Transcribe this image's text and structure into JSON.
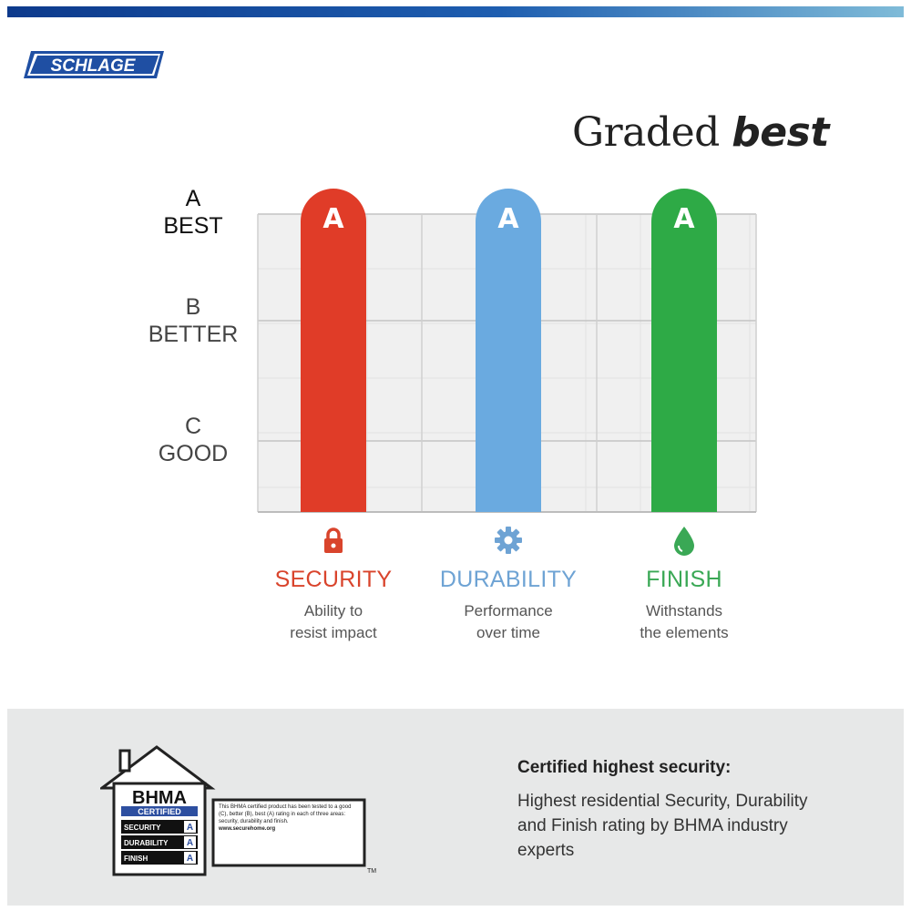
{
  "brand": {
    "logo_text": "SCHLAGE"
  },
  "headline": {
    "prefix": "Graded",
    "emphasis": "best"
  },
  "chart_data": {
    "type": "bar",
    "title": "Graded best",
    "categories": [
      "SECURITY",
      "DURABILITY",
      "FINISH"
    ],
    "values": [
      "A",
      "A",
      "A"
    ],
    "scale": [
      {
        "grade": "A",
        "label": "BEST"
      },
      {
        "grade": "B",
        "label": "BETTER"
      },
      {
        "grade": "C",
        "label": "GOOD"
      }
    ],
    "bar_colors": [
      "#e03c28",
      "#6aaae0",
      "#2eaa46"
    ],
    "category_colors": [
      "#d9442c",
      "#6ea3d4",
      "#3aa855"
    ],
    "descriptions": [
      [
        "Ability to",
        "resist impact"
      ],
      [
        "Performance",
        "over time"
      ],
      [
        "Withstands",
        "the elements"
      ]
    ],
    "icons": [
      "lock-icon",
      "gear-icon",
      "droplet-icon"
    ],
    "grid": true
  },
  "certification": {
    "title": "Certified highest security:",
    "text": "Highest residential Security, Durability and Finish rating by BHMA industry experts"
  },
  "bhma_badge": {
    "name": "BHMA",
    "certified": "CERTIFIED",
    "rows": [
      {
        "label": "SECURITY",
        "grade": "A"
      },
      {
        "label": "DURABILITY",
        "grade": "A"
      },
      {
        "label": "FINISH",
        "grade": "A"
      }
    ],
    "note": "This BHMA certified product has been tested to a good (C), better (B), best (A) rating in each of three areas: security, durability and finish.",
    "url": "www.securehome.org",
    "tm": "TM"
  }
}
